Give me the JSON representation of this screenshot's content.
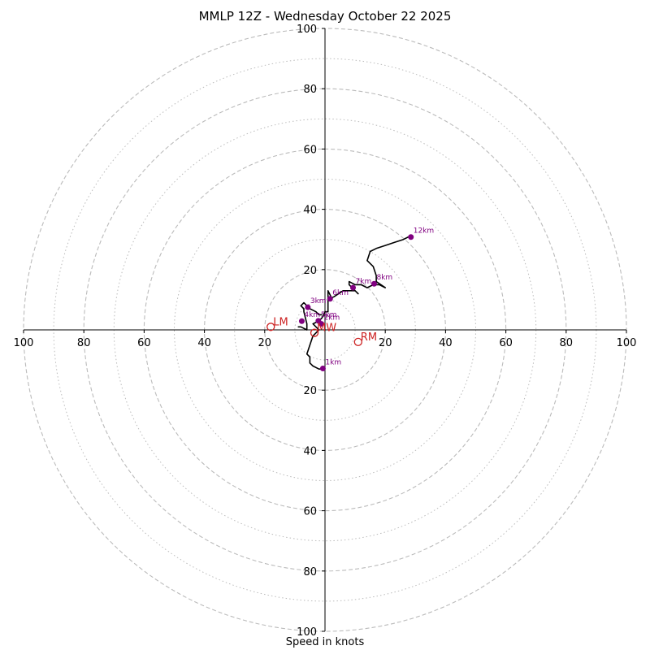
{
  "chart_data": {
    "type": "hodograph",
    "title": "MMLP 12Z - Wednesday October 22 2025",
    "xlabel": "Speed in knots",
    "range": 100,
    "ring_major": [
      20,
      40,
      60,
      80,
      100
    ],
    "ring_minor": [
      10,
      30,
      50,
      70,
      90
    ],
    "tick_values": [
      20,
      40,
      60,
      80,
      100
    ],
    "trace_color": "#000000",
    "marker_color": "#800080",
    "motion_color": "#cc2222",
    "grid_color": "#bbbbbb",
    "trace": [
      [
        0,
        -13
      ],
      [
        -2,
        -13
      ],
      [
        -4,
        -12
      ],
      [
        -5,
        -11
      ],
      [
        -5,
        -9
      ],
      [
        -6,
        -8
      ],
      [
        -5,
        -5
      ],
      [
        -4,
        -2
      ],
      [
        -2,
        0
      ],
      [
        -3,
        1
      ],
      [
        -4,
        2
      ],
      [
        -2,
        3
      ],
      [
        -1,
        4
      ],
      [
        0,
        6
      ],
      [
        1,
        6
      ],
      [
        1,
        13
      ],
      [
        2,
        11
      ],
      [
        1,
        10
      ],
      [
        3,
        11
      ],
      [
        6,
        13
      ],
      [
        8,
        13
      ],
      [
        10,
        13
      ],
      [
        11,
        12
      ],
      [
        10,
        13
      ],
      [
        8,
        15
      ],
      [
        8,
        16
      ],
      [
        10,
        15
      ],
      [
        12,
        15
      ],
      [
        14,
        14
      ],
      [
        16,
        15
      ],
      [
        18,
        15
      ],
      [
        20,
        14
      ],
      [
        17,
        16
      ],
      [
        17,
        18
      ],
      [
        16,
        21
      ],
      [
        14,
        23
      ],
      [
        15,
        26
      ],
      [
        17,
        27
      ],
      [
        20,
        28
      ],
      [
        23,
        29
      ],
      [
        26,
        30
      ],
      [
        28,
        31
      ]
    ],
    "secondary_trace": [
      [
        -9,
        1
      ],
      [
        -8,
        1
      ],
      [
        -6,
        0
      ],
      [
        -6,
        2
      ],
      [
        -7,
        6
      ],
      [
        -7,
        7
      ],
      [
        -8,
        8
      ],
      [
        -7,
        9
      ],
      [
        -6,
        8
      ],
      [
        -5,
        7
      ],
      [
        -3,
        6
      ],
      [
        -2,
        5
      ],
      [
        -1,
        5
      ]
    ],
    "height_markers": [
      {
        "label": "1km",
        "u": -0.7,
        "v": -12.8
      },
      {
        "label": "2km",
        "u": -1.2,
        "v": 2
      },
      {
        "label": "3km",
        "u": -5.7,
        "v": 7.5
      },
      {
        "label": "4km",
        "u": -7.7,
        "v": 2.9
      },
      {
        "label": "5km",
        "u": -2.2,
        "v": 3
      },
      {
        "label": "6km",
        "u": 1.7,
        "v": 10.3
      },
      {
        "label": "7km",
        "u": 9.3,
        "v": 14
      },
      {
        "label": "8km",
        "u": 16.3,
        "v": 15.3
      },
      {
        "label": "12km",
        "u": 28.5,
        "v": 30.8
      }
    ],
    "storm_motion": [
      {
        "label": "LM",
        "u": -18,
        "v": 1
      },
      {
        "label": "RM",
        "u": 11,
        "v": -4
      },
      {
        "label": "MW",
        "u": -3.5,
        "v": -1
      }
    ]
  }
}
